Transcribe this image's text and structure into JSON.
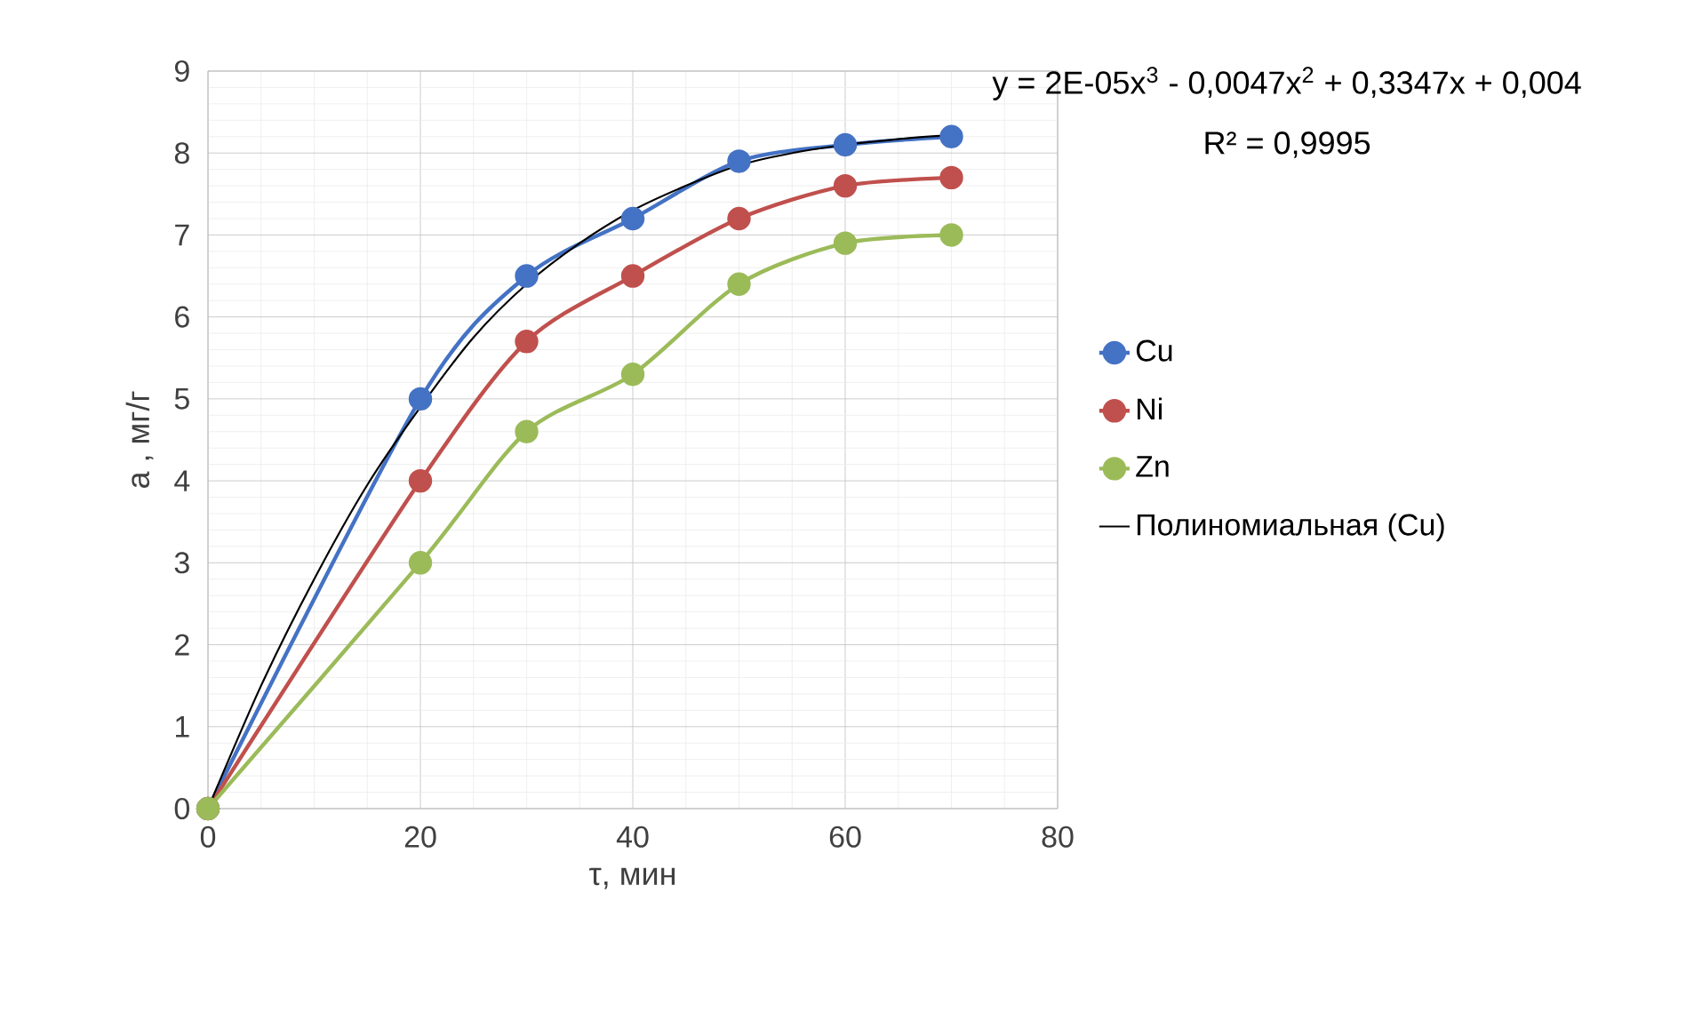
{
  "chart_data": {
    "type": "line",
    "xlabel": "τ, мин",
    "ylabel": "а , мг/г",
    "xlim": [
      0,
      80
    ],
    "xticks": [
      0,
      20,
      40,
      60,
      80
    ],
    "ylim": [
      0,
      9
    ],
    "yticks": [
      0,
      1,
      2,
      3,
      4,
      5,
      6,
      7,
      8,
      9
    ],
    "grid": true,
    "legend": "right",
    "marker": "circle",
    "x": [
      0,
      20,
      30,
      40,
      50,
      60,
      70
    ],
    "series": [
      {
        "name": "Cu",
        "color": "#4472c4",
        "values": [
          0,
          5,
          6.5,
          7.2,
          7.9,
          8.1,
          8.2
        ]
      },
      {
        "name": "Ni",
        "color": "#c0504d",
        "values": [
          0,
          4,
          5.7,
          6.5,
          7.2,
          7.6,
          7.7
        ]
      },
      {
        "name": "Zn",
        "color": "#9bbb59",
        "values": [
          0,
          3,
          4.6,
          5.3,
          6.4,
          6.9,
          7.0
        ]
      },
      {
        "name": "Полиномиальная (Cu)",
        "color": "#000000",
        "type": "line",
        "marker": "none",
        "x": [
          0,
          5,
          10,
          15,
          20,
          25,
          30,
          35,
          40,
          45,
          50,
          55,
          60,
          65,
          70
        ],
        "values": [
          0,
          1.5,
          2.8,
          3.95,
          4.9,
          5.75,
          6.4,
          6.9,
          7.3,
          7.6,
          7.85,
          8.0,
          8.1,
          8.17,
          8.22
        ]
      }
    ],
    "annotations": [
      "y = 2E-05x$^{3}$ - 0,0047x$^{2}$ + 0,3347x + 0,004",
      "R² = 0,9995"
    ]
  }
}
